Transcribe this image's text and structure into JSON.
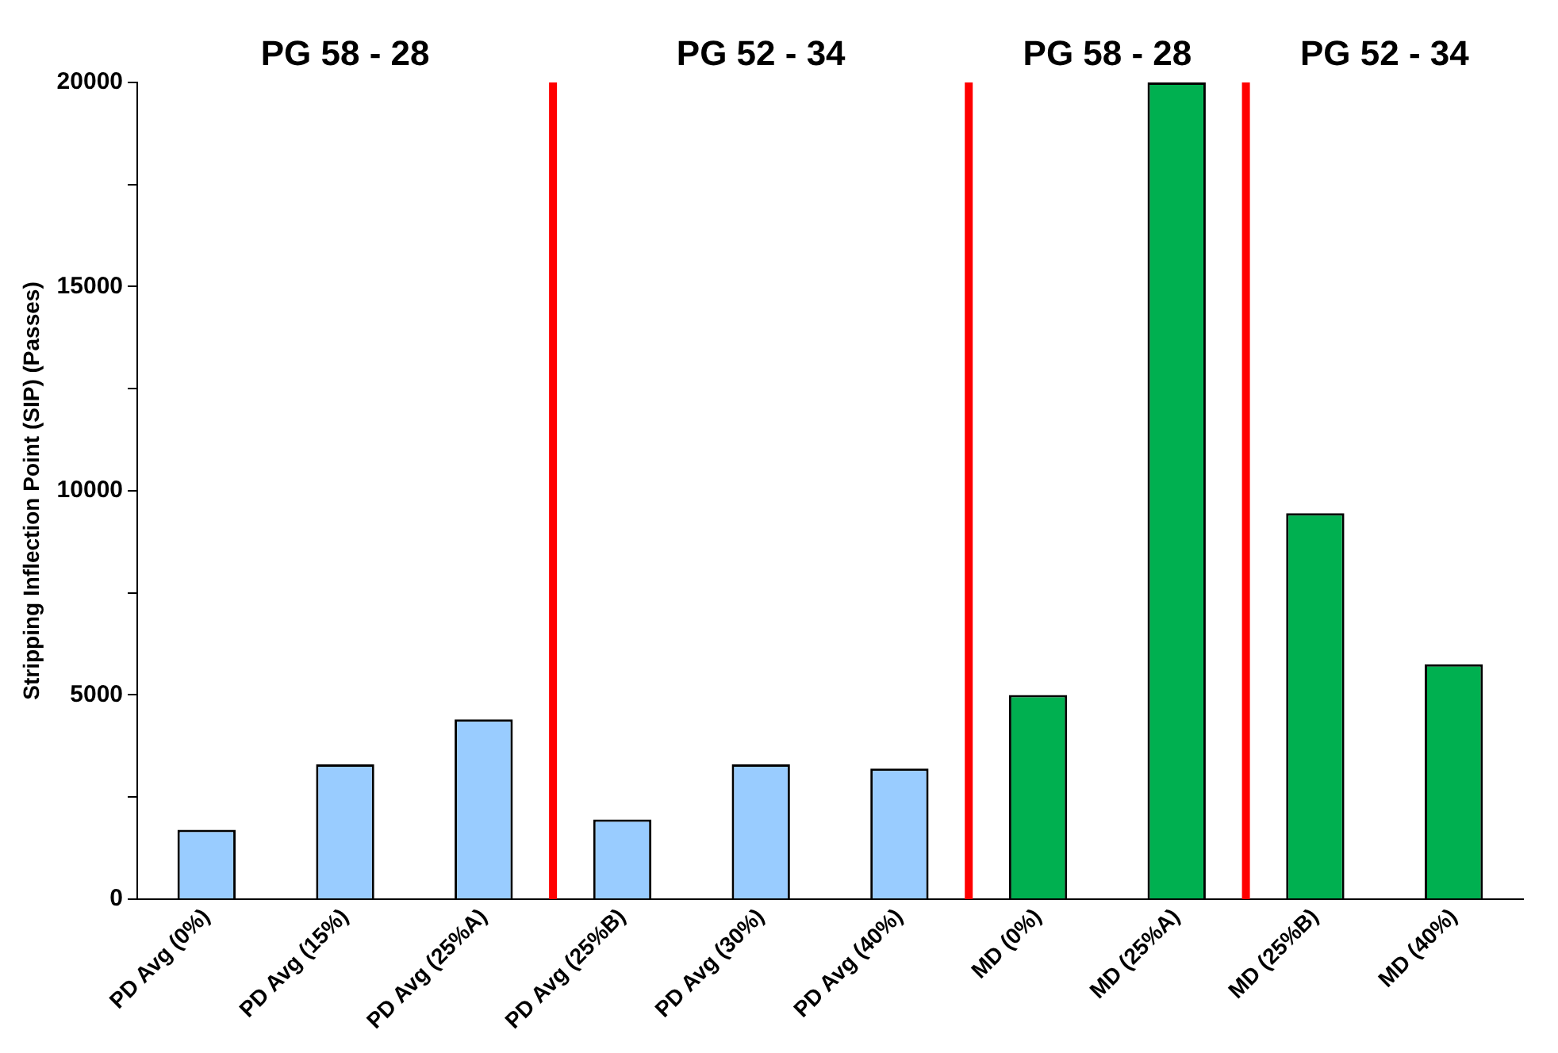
{
  "chart_data": {
    "type": "bar",
    "ylabel": "Stripping Inflection Point (SIP) (Passes)",
    "categories": [
      "PD Avg (0%)",
      "PD Avg (15%)",
      "PD Avg (25%A)",
      "PD Avg (25%B)",
      "PD Avg (30%)",
      "PD Avg (40%)",
      "MD (0%)",
      "MD (25%A)",
      "MD (25%B)",
      "MD (40%)"
    ],
    "values": [
      1700,
      3300,
      4400,
      1950,
      3300,
      3200,
      5000,
      20000,
      9450,
      5750
    ],
    "colors": [
      "#99ccff",
      "#99ccff",
      "#99ccff",
      "#99ccff",
      "#99ccff",
      "#99ccff",
      "#00b050",
      "#00b050",
      "#00b050",
      "#00b050"
    ],
    "ylim": [
      0,
      20000
    ],
    "yticks": [
      0,
      {
        "value": 2500,
        "label": null
      },
      5000,
      {
        "value": 7500,
        "label": null
      },
      10000,
      {
        "value": 12500,
        "label": null
      },
      15000,
      {
        "value": 17500,
        "label": null
      },
      20000
    ],
    "ref_lines": [
      {
        "axis": "x",
        "value": "PD Avg (25%B)",
        "color": "#ff0000"
      },
      {
        "axis": "x",
        "value": "MD (0%)",
        "color": "#ff0000"
      },
      {
        "axis": "x",
        "value": "MD (25%B)",
        "color": "#ff0000"
      }
    ],
    "annotations": [
      "PG 58 - 28",
      "PG 52 - 34",
      "PG 58 - 28",
      "PG 52 - 34"
    ],
    "grid": false,
    "legend": false
  }
}
